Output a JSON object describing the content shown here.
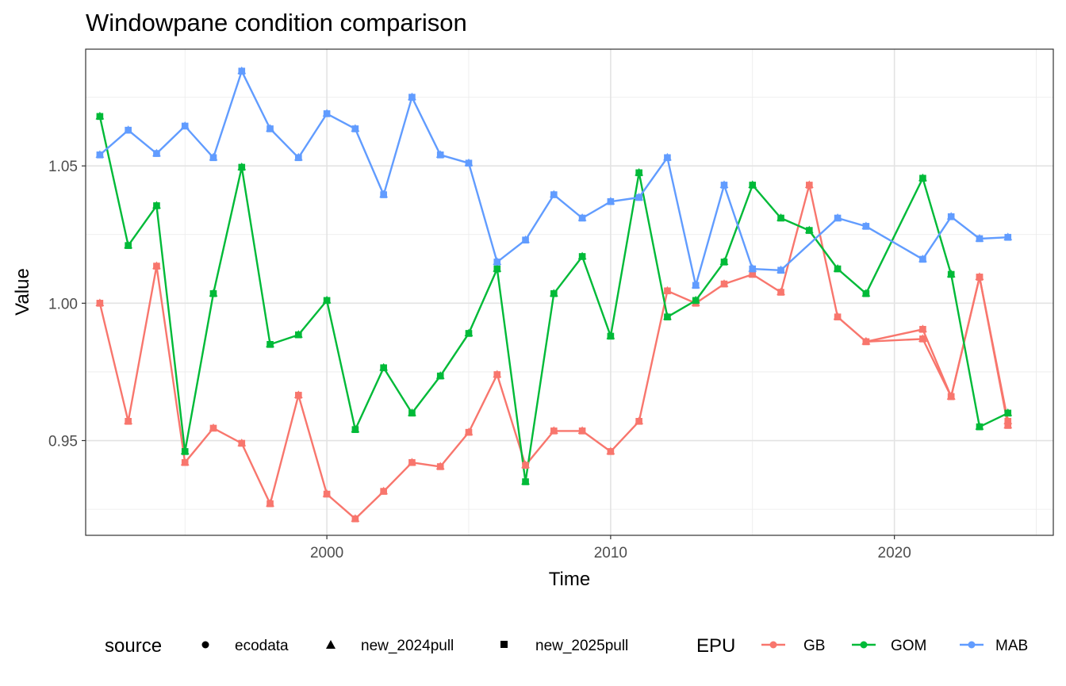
{
  "chart_data": {
    "type": "line",
    "title": "Windowpane condition comparison",
    "xlabel": "Time",
    "ylabel": "Value",
    "xlim": [
      1991.5,
      2025.6
    ],
    "ylim": [
      0.9155,
      1.0925
    ],
    "x_ticks": [
      2000,
      2010,
      2020
    ],
    "x_tick_labels": [
      "2000",
      "2010",
      "2020"
    ],
    "x_minor_ticks": [
      1995,
      2005,
      2015,
      2025
    ],
    "y_ticks": [
      0.95,
      1.0,
      1.05
    ],
    "y_tick_labels": [
      "0.95",
      "1.00",
      "1.05"
    ],
    "y_minor_ticks": [
      0.925,
      0.975,
      1.025,
      1.075
    ],
    "grid": true,
    "legend_position": "bottom",
    "source_legend": {
      "title": "source",
      "items": [
        {
          "label": "ecodata",
          "shape": "circle"
        },
        {
          "label": "new_2024pull",
          "shape": "triangle"
        },
        {
          "label": "new_2025pull",
          "shape": "square"
        }
      ]
    },
    "epu_legend": {
      "title": "EPU",
      "items": [
        {
          "label": "GB",
          "color": "#F8766D"
        },
        {
          "label": "GOM",
          "color": "#00BA38"
        },
        {
          "label": "MAB",
          "color": "#619CFF"
        }
      ]
    },
    "series": [
      {
        "name": "GB",
        "color": "#F8766D",
        "x": [
          1992,
          1993,
          1994,
          1995,
          1996,
          1997,
          1998,
          1999,
          2000,
          2001,
          2002,
          2003,
          2004,
          2005,
          2006,
          2007,
          2008,
          2009,
          2010,
          2011,
          2012,
          2013,
          2014,
          2015,
          2016,
          2017,
          2018,
          2019,
          2021,
          2022,
          2023,
          2024
        ],
        "y": [
          1.0,
          0.957,
          1.0135,
          0.942,
          0.9545,
          0.949,
          0.927,
          0.9665,
          0.9305,
          0.9215,
          0.9315,
          0.942,
          0.9405,
          0.953,
          0.974,
          0.941,
          0.9535,
          0.9535,
          0.946,
          0.957,
          1.0045,
          1.0,
          1.007,
          1.0105,
          1.004,
          1.043,
          0.995,
          0.986,
          0.9905,
          0.966,
          1.0095,
          0.957
        ]
      },
      {
        "name": "GB",
        "color": "#F8766D",
        "x": [
          2019,
          2021,
          2022,
          2023,
          2024
        ],
        "y": [
          0.986,
          0.987,
          0.966,
          1.0095,
          0.9555
        ]
      },
      {
        "name": "GOM",
        "color": "#00BA38",
        "x": [
          1992,
          1993,
          1994,
          1995,
          1996,
          1997,
          1998,
          1999,
          2000,
          2001,
          2002,
          2003,
          2004,
          2005,
          2006,
          2007,
          2008,
          2009,
          2010,
          2011,
          2012,
          2013,
          2014,
          2015,
          2016,
          2017,
          2018,
          2019,
          2021,
          2022,
          2023,
          2024
        ],
        "y": [
          1.068,
          1.021,
          1.0355,
          0.946,
          1.0035,
          1.0495,
          0.985,
          0.9885,
          1.001,
          0.954,
          0.9765,
          0.96,
          0.9735,
          0.989,
          1.0125,
          0.935,
          1.0035,
          1.017,
          0.988,
          1.0475,
          0.995,
          1.001,
          1.015,
          1.043,
          1.031,
          1.0265,
          1.0125,
          1.0035,
          1.0455,
          1.0105,
          0.955,
          0.96
        ]
      },
      {
        "name": "MAB",
        "color": "#619CFF",
        "x": [
          1992,
          1993,
          1994,
          1995,
          1996,
          1997,
          1998,
          1999,
          2000,
          2001,
          2002,
          2003,
          2004,
          2005,
          2006,
          2007,
          2008,
          2009,
          2010,
          2011,
          2012,
          2013,
          2014,
          2015,
          2016,
          2018,
          2019,
          2021,
          2022,
          2023,
          2024
        ],
        "y": [
          1.054,
          1.063,
          1.0545,
          1.0645,
          1.053,
          1.0845,
          1.0635,
          1.053,
          1.069,
          1.0635,
          1.0395,
          1.075,
          1.054,
          1.051,
          1.015,
          1.023,
          1.0395,
          1.031,
          1.037,
          1.0385,
          1.053,
          1.0065,
          1.043,
          1.0125,
          1.012,
          1.031,
          1.028,
          1.016,
          1.0315,
          1.0235,
          1.024
        ]
      }
    ]
  }
}
